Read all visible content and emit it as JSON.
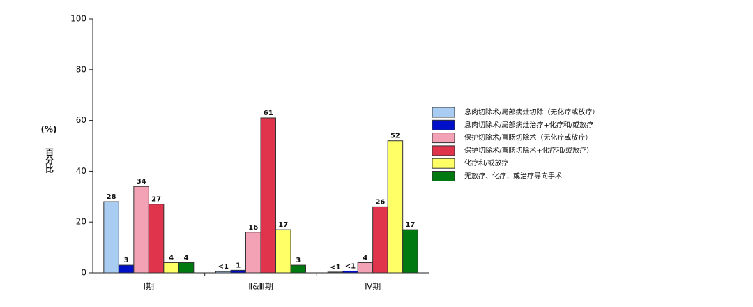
{
  "chart_data": {
    "type": "bar",
    "ylabel_unit": "(%)",
    "ylabel": "百分比",
    "categories": [
      "Ⅰ期",
      "Ⅱ&Ⅲ期",
      "Ⅳ期"
    ],
    "ylim": [
      0,
      100
    ],
    "yticks": [
      0,
      20,
      40,
      60,
      80,
      100
    ],
    "series": [
      {
        "name": "息肉切除术/局部病灶切除（无化疗或放疗）",
        "color": "#a9cdf2",
        "values": [
          28,
          0.5,
          0.3
        ],
        "value_labels": [
          "28",
          "<1",
          "<1"
        ]
      },
      {
        "name": "息肉切除术/局部病灶治疗+化疗和/或放疗",
        "color": "#0010c8",
        "values": [
          3,
          1,
          0.7
        ],
        "value_labels": [
          "3",
          "1",
          "<1"
        ]
      },
      {
        "name": "保护切除术/直肠切除术（无化疗或放疗）",
        "color": "#f2a2b4",
        "values": [
          34,
          16,
          4
        ],
        "value_labels": [
          "34",
          "16",
          "4"
        ]
      },
      {
        "name": "保护切除术/直肠切除术+化疗和/或放疗）",
        "color": "#e0334c",
        "values": [
          27,
          61,
          26
        ],
        "value_labels": [
          "27",
          "61",
          "26"
        ]
      },
      {
        "name": "化疗和/或放疗",
        "color": "#ffff66",
        "values": [
          4,
          17,
          52
        ],
        "value_labels": [
          "4",
          "17",
          "52"
        ]
      },
      {
        "name": "无放疗、化疗，或治疗导向手术",
        "color": "#007a10",
        "values": [
          4,
          3,
          17
        ],
        "value_labels": [
          "4",
          "3",
          "17"
        ]
      }
    ]
  }
}
